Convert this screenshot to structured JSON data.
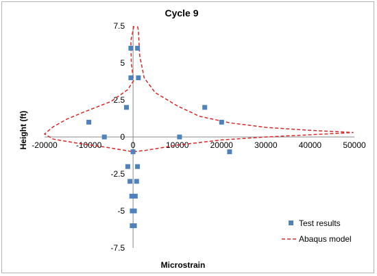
{
  "chart_data": {
    "type": "scatter",
    "title": "Cycle 9",
    "xlabel": "Microstrain",
    "ylabel": "Height (ft)",
    "xlim": [
      -20000,
      50000
    ],
    "ylim": [
      -7.5,
      7.5
    ],
    "xticks": [
      -20000,
      -10000,
      0,
      10000,
      20000,
      30000,
      40000,
      50000
    ],
    "xtick_labels": [
      "-20000",
      "-10000",
      "0",
      "10000",
      "20000",
      "30000",
      "40000",
      "50000"
    ],
    "yticks": [
      -7.5,
      -5,
      -2.5,
      0,
      2.5,
      5,
      7.5
    ],
    "ytick_labels": [
      "-7.5",
      "-5",
      "-2.5",
      "0",
      "2.5",
      "5",
      "7.5"
    ],
    "grid": false,
    "legend_position": "bottom-right",
    "series": [
      {
        "name": "Test results",
        "kind": "points",
        "color": "#4f81bd",
        "points": [
          [
            -500,
            6
          ],
          [
            1000,
            6
          ],
          [
            -500,
            4
          ],
          [
            1200,
            4
          ],
          [
            -1500,
            2
          ],
          [
            16200,
            2
          ],
          [
            -10000,
            1
          ],
          [
            20000,
            1
          ],
          [
            -6500,
            0
          ],
          [
            10500,
            0
          ],
          [
            21800,
            -1
          ],
          [
            0,
            -1
          ],
          [
            -1200,
            -2
          ],
          [
            1000,
            -2
          ],
          [
            -700,
            -3
          ],
          [
            800,
            -3
          ],
          [
            -300,
            -4
          ],
          [
            500,
            -4
          ],
          [
            -200,
            -5
          ],
          [
            300,
            -5
          ],
          [
            -200,
            -6
          ],
          [
            300,
            -6
          ]
        ]
      },
      {
        "name": "Abaqus model",
        "kind": "line",
        "color": "#d62728",
        "dash": true,
        "points": [
          [
            200,
            7.5
          ],
          [
            -500,
            6.5
          ],
          [
            -400,
            5
          ],
          [
            100,
            3.8
          ],
          [
            -1200,
            3.2
          ],
          [
            -5000,
            2.4
          ],
          [
            -11000,
            1.7
          ],
          [
            -15000,
            1.2
          ],
          [
            -18000,
            0.7
          ],
          [
            -20000,
            0.2
          ],
          [
            -18000,
            -0.15
          ],
          [
            -12000,
            -0.45
          ],
          [
            -6000,
            -0.7
          ],
          [
            -2000,
            -0.9
          ],
          [
            0,
            -1
          ],
          [
            3000,
            -0.9
          ],
          [
            10000,
            -0.55
          ],
          [
            20000,
            -0.2
          ],
          [
            30000,
            0
          ],
          [
            40000,
            0.15
          ],
          [
            49800,
            0.3
          ],
          [
            40000,
            0.45
          ],
          [
            30000,
            0.65
          ],
          [
            22000,
            0.95
          ],
          [
            15000,
            1.4
          ],
          [
            10000,
            2.1
          ],
          [
            5000,
            3.0
          ],
          [
            2500,
            4.0
          ],
          [
            1500,
            5.5
          ],
          [
            1200,
            7.2
          ],
          [
            1000,
            7.5
          ]
        ]
      }
    ]
  }
}
